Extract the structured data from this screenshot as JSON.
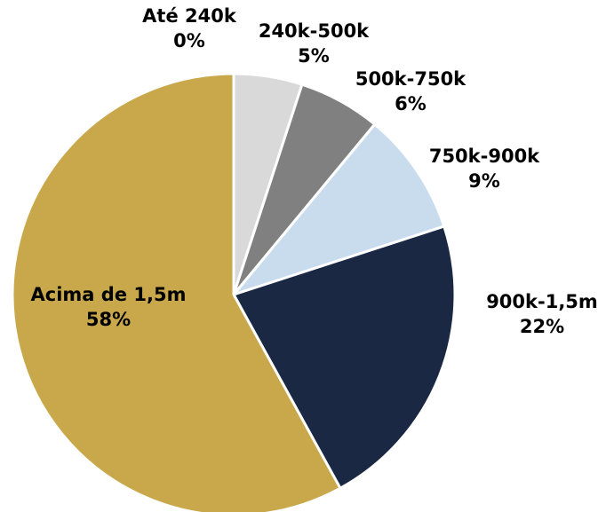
{
  "chart_data": {
    "type": "pie",
    "title": "",
    "unit": "%",
    "slices": [
      {
        "label": "Até 240k",
        "value": 0,
        "value_label": "0%",
        "color": "#d9d9d9"
      },
      {
        "label": "240k-500k",
        "value": 5,
        "value_label": "5%",
        "color": "#d9d9d9"
      },
      {
        "label": "500k-750k",
        "value": 6,
        "value_label": "6%",
        "color": "#808080"
      },
      {
        "label": "750k-900k",
        "value": 9,
        "value_label": "9%",
        "color": "#c9dcee"
      },
      {
        "label": "900k-1,5m",
        "value": 22,
        "value_label": "22%",
        "color": "#1a2844"
      },
      {
        "label": "Acima de 1,5m",
        "value": 58,
        "value_label": "58%",
        "color": "#c8a84b"
      }
    ],
    "start_angle": "top",
    "direction": "clockwise",
    "slice_border_color": "#ffffff",
    "legend": "none"
  }
}
